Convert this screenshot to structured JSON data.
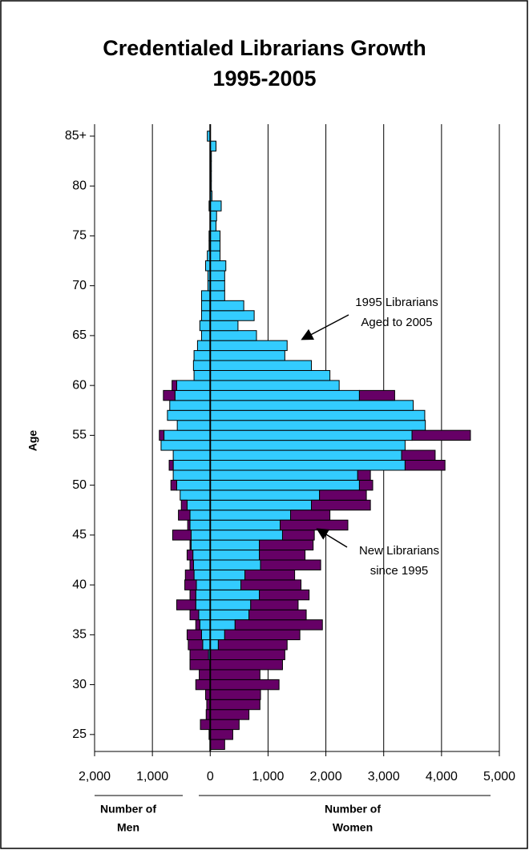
{
  "chart_data": {
    "type": "pyramid",
    "title": [
      "Credentialed Librarians Growth",
      "1995-2005"
    ],
    "ylabel": "Age",
    "xlabel_left": [
      "Number of",
      "Men"
    ],
    "xlabel_right": [
      "Number of",
      "Women"
    ],
    "y": [
      24,
      25,
      26,
      27,
      28,
      29,
      30,
      31,
      32,
      33,
      34,
      35,
      36,
      37,
      38,
      39,
      40,
      41,
      42,
      43,
      44,
      45,
      46,
      47,
      48,
      49,
      50,
      51,
      52,
      53,
      54,
      55,
      56,
      57,
      58,
      59,
      60,
      61,
      62,
      63,
      64,
      65,
      66,
      67,
      68,
      69,
      70,
      71,
      72,
      73,
      74,
      75,
      76,
      77,
      78,
      79,
      80,
      81,
      82,
      83,
      84,
      85
    ],
    "series": [
      {
        "color": "#33ccff",
        "values": [
          0,
          0,
          0,
          0,
          0,
          0,
          0,
          0,
          0,
          -30,
          -130,
          -150,
          -180,
          -200,
          -250,
          -250,
          -240,
          -280,
          -290,
          -300,
          -330,
          -330,
          -350,
          -350,
          -400,
          -520,
          -580,
          -640,
          -640,
          -640,
          -850,
          -800,
          -570,
          -740,
          -700,
          -610,
          -580,
          -280,
          -290,
          -280,
          -220,
          -150,
          -180,
          -150,
          -150,
          -150,
          -40,
          -40,
          -80,
          -50,
          -20,
          -20,
          0,
          0,
          -20,
          0,
          0,
          0,
          0,
          0,
          0,
          -50
        ]
      },
      {
        "color": "#660066",
        "values": [
          0,
          -20,
          -170,
          -70,
          -60,
          -80,
          -250,
          -190,
          -350,
          -320,
          -250,
          -250,
          -70,
          -150,
          -330,
          -100,
          -200,
          -150,
          -60,
          -100,
          -20,
          -320,
          -40,
          -200,
          -100,
          0,
          -100,
          0,
          -70,
          0,
          0,
          -80,
          0,
          0,
          0,
          -200,
          -80,
          0,
          0,
          0,
          0,
          0,
          0,
          0,
          0,
          0,
          0,
          0,
          0,
          0,
          0,
          0,
          0,
          0,
          0,
          0,
          0,
          0,
          0,
          0,
          0,
          0
        ]
      },
      {
        "color": "#33ccff",
        "values": [
          0,
          0,
          0,
          0,
          0,
          0,
          0,
          0,
          0,
          0,
          140,
          250,
          430,
          670,
          700,
          850,
          530,
          600,
          870,
          850,
          850,
          1250,
          1210,
          1390,
          1750,
          1890,
          2580,
          2550,
          3370,
          3310,
          3370,
          3490,
          3720,
          3710,
          3510,
          2580,
          2230,
          2070,
          1750,
          1290,
          1330,
          800,
          480,
          760,
          580,
          250,
          250,
          250,
          270,
          170,
          170,
          170,
          100,
          110,
          190,
          30,
          20,
          20,
          20,
          20,
          100,
          0
        ]
      },
      {
        "color": "#660066",
        "values": [
          250,
          390,
          500,
          670,
          860,
          870,
          1190,
          860,
          1250,
          1290,
          1190,
          1300,
          1510,
          990,
          820,
          860,
          1040,
          860,
          1040,
          790,
          930,
          550,
          1170,
          680,
          1020,
          810,
          230,
          220,
          690,
          580,
          0,
          1010,
          0,
          0,
          0,
          610,
          0,
          0,
          0,
          0,
          0,
          0,
          0,
          0,
          0,
          0,
          0,
          0,
          0,
          0,
          0,
          0,
          0,
          0,
          0,
          0,
          0,
          0,
          0,
          0,
          0,
          0
        ]
      }
    ],
    "xlim": [
      -2000,
      5000
    ],
    "xticks": [
      {
        "value": -2000,
        "label": "2,000"
      },
      {
        "value": -1000,
        "label": "1,000"
      },
      0,
      {
        "value": 1000,
        "label": "1,000"
      },
      {
        "value": 2000,
        "label": "2,000"
      },
      {
        "value": 3000,
        "label": "3,000"
      },
      {
        "value": 4000,
        "label": "4,000"
      },
      {
        "value": 5000,
        "label": "5,000"
      }
    ],
    "ylim": [
      23.3,
      86.2
    ],
    "yticks": [
      25,
      30,
      35,
      40,
      45,
      50,
      55,
      60,
      65,
      70,
      75,
      80,
      {
        "value": 85,
        "label": "85+"
      }
    ],
    "grid": true,
    "annotations": [
      {
        "lines": [
          "1995 Librarians",
          "Aged to 2005"
        ]
      },
      {
        "lines": [
          "New Librarians",
          "since 1995"
        ]
      }
    ]
  }
}
